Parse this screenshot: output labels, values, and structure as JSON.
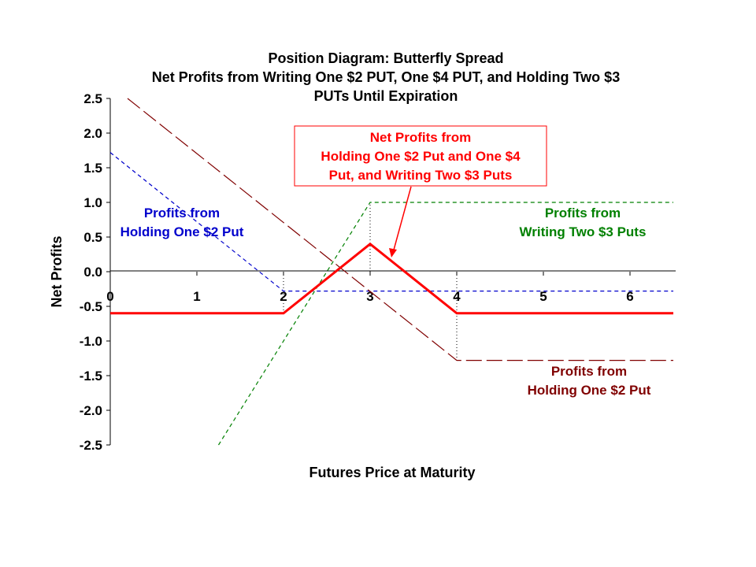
{
  "chart_data": {
    "type": "line",
    "title_lines": [
      "Position Diagram:  Butterfly Spread",
      "Net Profits from Writing One $2 PUT, One $4 PUT, and Holding Two $3",
      "PUTs Until Expiration"
    ],
    "xlabel": "Futures Price at Maturity",
    "ylabel": "Net Profits",
    "xlim": [
      0,
      6.5
    ],
    "ylim": [
      -2.5,
      2.5
    ],
    "x_ticks": [
      "0",
      "1",
      "2",
      "3",
      "4",
      "5",
      "6"
    ],
    "y_ticks": [
      "2.5",
      "2.0",
      "1.5",
      "1.0",
      "0.5",
      "0.0",
      "-0.5",
      "-1.0",
      "-1.5",
      "-2.0",
      "-2.5"
    ],
    "colors": {
      "net": "#ff0000",
      "holding_put": "#0000cc",
      "writing_puts": "#008000",
      "long_dash": "#800000"
    },
    "series": [
      {
        "key": "net",
        "color": "#ff0000",
        "style": "solid",
        "points": [
          [
            0,
            -0.6
          ],
          [
            2,
            -0.6
          ],
          [
            3,
            0.4
          ],
          [
            4,
            -0.6
          ],
          [
            6.5,
            -0.6
          ]
        ]
      },
      {
        "key": "blue",
        "color": "#0000cc",
        "style": "dashed",
        "points": [
          [
            0,
            1.72
          ],
          [
            2,
            -0.28
          ],
          [
            6.5,
            -0.28
          ]
        ]
      },
      {
        "key": "green",
        "color": "#008000",
        "style": "dashed",
        "points": [
          [
            1.25,
            -2.5
          ],
          [
            3,
            1.0
          ],
          [
            6.5,
            1.0
          ]
        ]
      },
      {
        "key": "maroon",
        "color": "#800000",
        "style": "longdash",
        "points": [
          [
            0.2,
            2.5
          ],
          [
            4,
            -1.28
          ],
          [
            6.5,
            -1.28
          ]
        ]
      }
    ],
    "guides": [
      {
        "x": 2,
        "y": -0.6
      },
      {
        "x": 3,
        "y": 1.0
      },
      {
        "x": 4,
        "y": -1.28
      }
    ],
    "annotations": {
      "net_box": [
        "Net Profits from",
        "Holding One $2 Put and One $4",
        "Put, and Writing Two $3 Puts"
      ],
      "blue": [
        "Profits from",
        "Holding One $2 Put"
      ],
      "green": [
        "Profits from",
        "Writing Two $3 Puts"
      ],
      "maroon": [
        "Profits from",
        "Holding One $2 Put"
      ]
    }
  }
}
